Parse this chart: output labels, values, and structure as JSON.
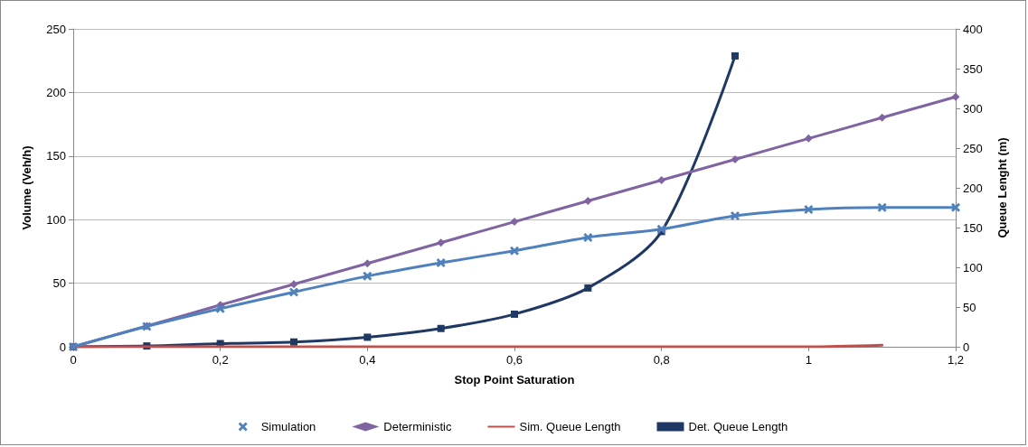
{
  "chart_data": {
    "type": "line",
    "xlabel": "Stop Point Saturation",
    "ylabel": "Volume (Veh/h)",
    "y2label": "Queue Lenght (m)",
    "xlim": [
      0,
      1.2
    ],
    "xticks": [
      0,
      {
        "value": 0.2,
        "label": "0,2"
      },
      {
        "value": 0.4,
        "label": "0,4"
      },
      {
        "value": 0.6,
        "label": "0,6"
      },
      {
        "value": 0.8,
        "label": "0,8"
      },
      1,
      {
        "value": 1.2,
        "label": "1,2"
      }
    ],
    "ylim": [
      0,
      250
    ],
    "yticks": [
      0,
      50,
      100,
      150,
      200,
      250
    ],
    "y2lim": [
      0,
      400
    ],
    "y2ticks": [
      0,
      50,
      100,
      150,
      200,
      250,
      300,
      350,
      400
    ],
    "grid": "y",
    "legend": "bottom",
    "series": [
      {
        "name": "Simulation",
        "color": "#4f81bd",
        "marker": "cross",
        "x": [
          0,
          0.1,
          0.2,
          0.3,
          0.4,
          0.5,
          0.6,
          0.7,
          0.8,
          0.9,
          1,
          1.1,
          1.2
        ],
        "values": [
          0,
          16,
          30,
          43,
          55.5,
          66,
          75.5,
          86,
          92.5,
          103,
          108,
          109.5,
          109.5
        ]
      },
      {
        "name": "Deterministic",
        "color": "#8064a2",
        "marker": "diamond",
        "x": [
          0,
          0.1,
          0.2,
          0.3,
          0.4,
          0.5,
          0.6,
          0.7,
          0.8,
          0.9,
          1,
          1.1,
          1.2
        ],
        "values": [
          0,
          16.4,
          32.8,
          49.2,
          65.5,
          81.9,
          98.3,
          114.7,
          131,
          147.4,
          163.8,
          180.2,
          196.6
        ]
      },
      {
        "name": "Sim. Queue Length",
        "color": "#c0504d",
        "marker": "none",
        "axis": "y2",
        "x": [
          0,
          0.1,
          0.2,
          0.3,
          0.4,
          0.5,
          0.6,
          0.7,
          0.8,
          0.9,
          1,
          1.1
        ],
        "values": [
          0,
          0,
          0,
          0,
          0,
          0,
          0,
          0,
          0,
          0,
          0,
          2
        ]
      },
      {
        "name": "Det. Queue Length",
        "color": "#1f3864",
        "marker": "square",
        "axis": "y2",
        "x": [
          0,
          0.1,
          0.2,
          0.3,
          0.4,
          0.5,
          0.6,
          0.7,
          0.8,
          0.9
        ],
        "values": [
          0,
          1,
          4,
          6,
          12,
          23,
          41,
          74,
          145,
          366
        ]
      }
    ]
  }
}
